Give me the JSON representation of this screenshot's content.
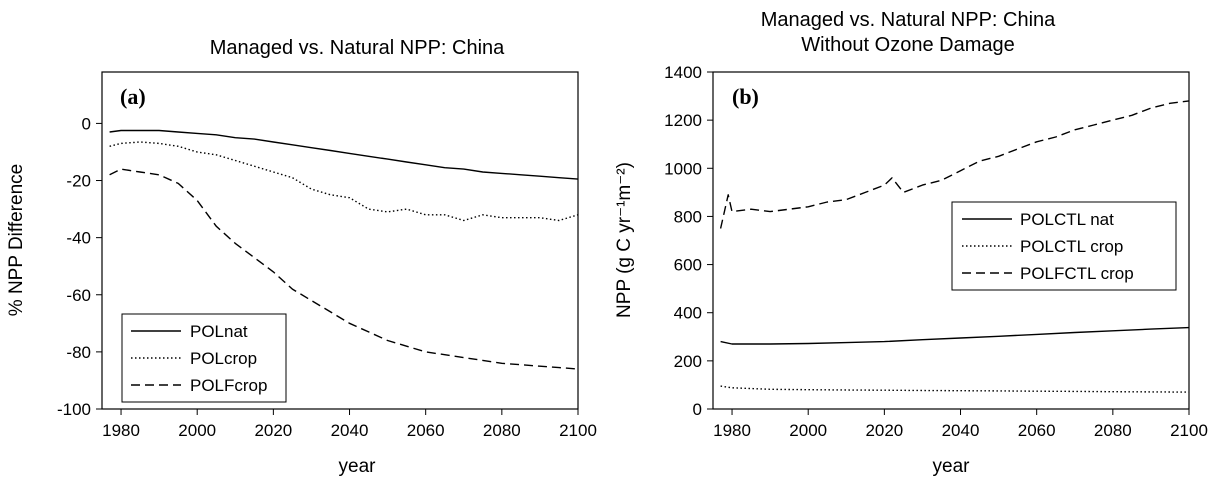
{
  "chart_data": [
    {
      "type": "line",
      "panel_label": "(a)",
      "title": "Managed vs. Natural NPP: China",
      "xlabel": "year",
      "ylabel": "% NPP Difference",
      "xlim": [
        1975,
        2100
      ],
      "ylim": [
        -100,
        18
      ],
      "xticks": [
        1980,
        2000,
        2020,
        2040,
        2060,
        2080,
        2100
      ],
      "yticks": [
        -100,
        -80,
        -60,
        -40,
        -20,
        0
      ],
      "legend": "bottom-left",
      "grid": false,
      "series": [
        {
          "name": "POLnat",
          "dash": "solid",
          "x": [
            1977,
            1980,
            1985,
            1990,
            1995,
            2000,
            2005,
            2010,
            2015,
            2020,
            2025,
            2030,
            2035,
            2040,
            2045,
            2050,
            2055,
            2060,
            2065,
            2070,
            2075,
            2080,
            2085,
            2090,
            2095,
            2100
          ],
          "y": [
            -3,
            -2.5,
            -2.5,
            -2.5,
            -3,
            -3.5,
            -4,
            -5,
            -5.5,
            -6.5,
            -7.5,
            -8.5,
            -9.5,
            -10.5,
            -11.5,
            -12.5,
            -13.5,
            -14.5,
            -15.5,
            -16,
            -17,
            -17.5,
            -18,
            -18.5,
            -19,
            -19.5
          ]
        },
        {
          "name": "POLcrop",
          "dash": "dotted",
          "x": [
            1977,
            1980,
            1985,
            1990,
            1995,
            2000,
            2005,
            2010,
            2015,
            2020,
            2025,
            2030,
            2035,
            2040,
            2045,
            2050,
            2055,
            2060,
            2065,
            2070,
            2075,
            2080,
            2085,
            2090,
            2095,
            2100
          ],
          "y": [
            -8,
            -7,
            -6.5,
            -7,
            -8,
            -10,
            -11,
            -13,
            -15,
            -17,
            -19,
            -23,
            -25,
            -26,
            -30,
            -31,
            -30,
            -32,
            -32,
            -34,
            -32,
            -33,
            -33,
            -33,
            -34,
            -32
          ]
        },
        {
          "name": "POLFcrop",
          "dash": "dashed",
          "x": [
            1977,
            1980,
            1985,
            1990,
            1995,
            2000,
            2005,
            2010,
            2015,
            2020,
            2025,
            2030,
            2035,
            2040,
            2045,
            2050,
            2055,
            2060,
            2065,
            2070,
            2075,
            2080,
            2085,
            2090,
            2095,
            2100
          ],
          "y": [
            -18,
            -16,
            -17,
            -18,
            -21,
            -27,
            -36,
            -42,
            -47,
            -52,
            -58,
            -62,
            -66,
            -70,
            -73,
            -76,
            -78,
            -80,
            -81,
            -82,
            -83,
            -84,
            -84.5,
            -85,
            -85.5,
            -86
          ]
        }
      ]
    },
    {
      "type": "line",
      "panel_label": "(b)",
      "title": "Managed vs. Natural NPP: China",
      "subtitle": "Without Ozone Damage",
      "xlabel": "year",
      "ylabel": "NPP (g C yr⁻¹m⁻²)",
      "xlim": [
        1975,
        2100
      ],
      "ylim": [
        0,
        1400
      ],
      "xticks": [
        1980,
        2000,
        2020,
        2040,
        2060,
        2080,
        2100
      ],
      "yticks": [
        0,
        200,
        400,
        600,
        800,
        1000,
        1200,
        1400
      ],
      "legend": "center-right",
      "grid": false,
      "series": [
        {
          "name": "POLCTL nat",
          "dash": "solid",
          "x": [
            1977,
            1980,
            1990,
            2000,
            2010,
            2020,
            2030,
            2040,
            2050,
            2060,
            2070,
            2080,
            2090,
            2100
          ],
          "y": [
            280,
            270,
            270,
            272,
            276,
            280,
            288,
            295,
            302,
            310,
            318,
            325,
            332,
            338
          ]
        },
        {
          "name": "POLCTL crop",
          "dash": "dotted",
          "x": [
            1977,
            1980,
            1990,
            2000,
            2010,
            2020,
            2030,
            2040,
            2050,
            2060,
            2070,
            2080,
            2090,
            2100
          ],
          "y": [
            95,
            88,
            82,
            80,
            79,
            78,
            77,
            76,
            75,
            74,
            73,
            72,
            71,
            70
          ]
        },
        {
          "name": "POLFCTL crop",
          "dash": "dashed",
          "x": [
            1977,
            1979,
            1980,
            1985,
            1990,
            1995,
            2000,
            2005,
            2010,
            2015,
            2020,
            2022,
            2025,
            2030,
            2035,
            2040,
            2045,
            2050,
            2055,
            2060,
            2065,
            2070,
            2075,
            2080,
            2085,
            2090,
            2095,
            2100
          ],
          "y": [
            750,
            890,
            820,
            830,
            820,
            830,
            840,
            860,
            870,
            900,
            930,
            960,
            900,
            930,
            950,
            990,
            1030,
            1050,
            1080,
            1110,
            1130,
            1160,
            1180,
            1200,
            1220,
            1250,
            1270,
            1280
          ]
        }
      ]
    }
  ]
}
